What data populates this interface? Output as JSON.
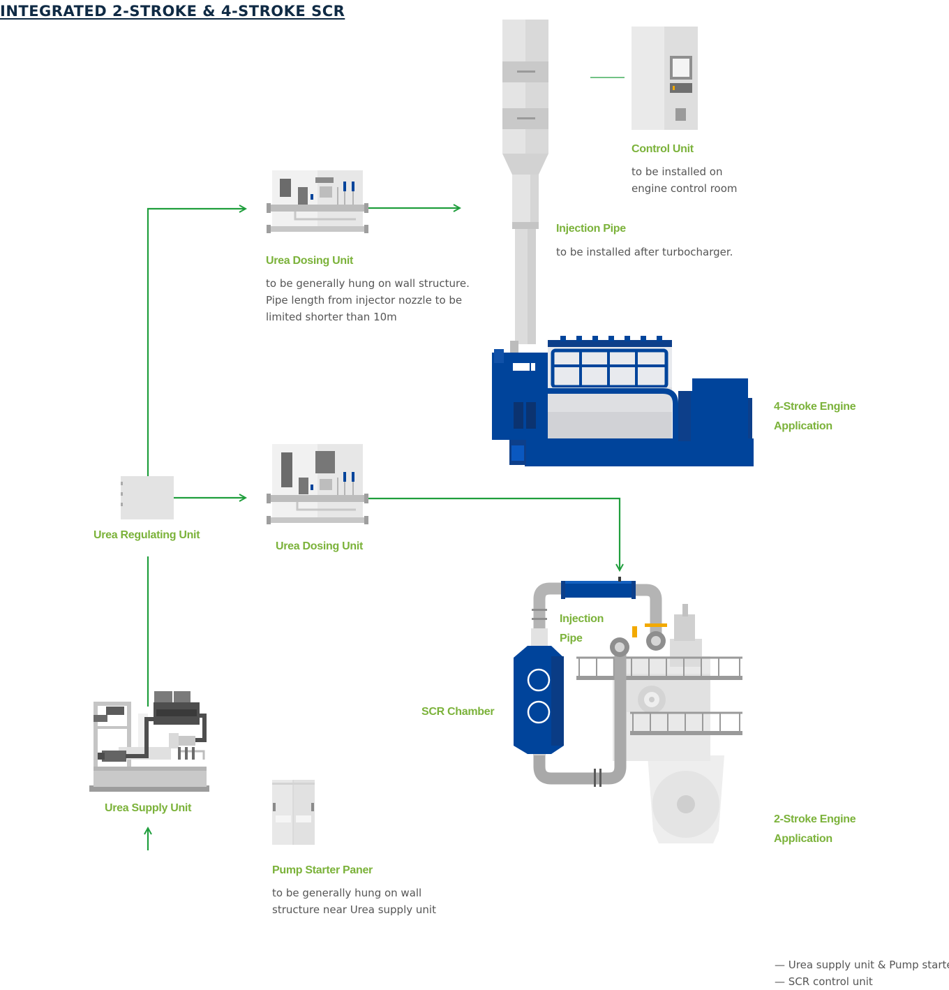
{
  "title": "INTEGRATED 2-STROKE & 4-STROKE SCR",
  "colors": {
    "green_line": "#1f9e3c",
    "label_green": "#7bb23a",
    "engine_blue": "#00449b",
    "title_navy": "#0f2a44",
    "equipment_grey": "#e3e3e3"
  },
  "components": {
    "control_unit": {
      "label": "Control Unit",
      "desc": [
        "to be installed on",
        "engine control room"
      ]
    },
    "injection_pipe_4s": {
      "label": "Injection Pipe",
      "desc": [
        "to be installed after turbocharger."
      ]
    },
    "urea_dosing_unit_1": {
      "label": "Urea Dosing Unit",
      "desc": [
        "to be generally hung on wall structure.",
        "Pipe length from injector nozzle to be",
        "limited shorter than 10m"
      ]
    },
    "four_stroke_engine": {
      "label": [
        "4-Stroke Engine",
        "Application"
      ]
    },
    "urea_regulating_unit": {
      "label": "Urea Regulating Unit"
    },
    "urea_dosing_unit_2": {
      "label": "Urea Dosing Unit"
    },
    "injection_pipe_2s": {
      "label": [
        "Injection",
        "Pipe"
      ]
    },
    "scr_chamber": {
      "label": "SCR Chamber"
    },
    "urea_supply_unit": {
      "label": "Urea Supply Unit"
    },
    "pump_starter_panel": {
      "label": "Pump Starter Paner",
      "desc": [
        "to be generally hung on wall",
        "structure near Urea supply unit"
      ]
    },
    "two_stroke_engine": {
      "label": [
        "2-Stroke Engine",
        "Application"
      ]
    }
  },
  "legend": [
    "— Urea supply unit & Pump starter",
    "— SCR control unit"
  ]
}
